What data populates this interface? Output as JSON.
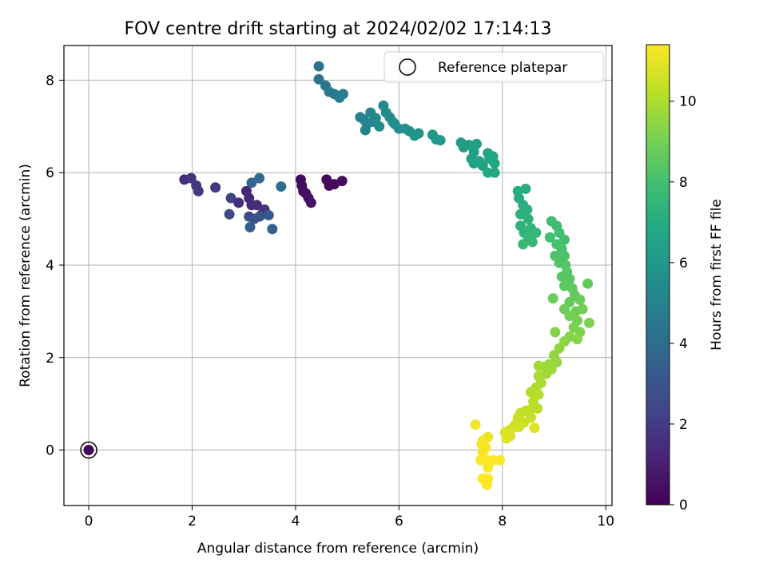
{
  "chart_data": {
    "type": "scatter",
    "title": "FOV centre drift starting at 2024/02/02 17:14:13",
    "xlabel": "Angular distance from reference (arcmin)",
    "ylabel": "Rotation from reference (arcmin)",
    "xlim": [
      -0.48,
      10.12
    ],
    "ylim": [
      -1.2,
      8.75
    ],
    "xticks": [
      0,
      2,
      4,
      6,
      8,
      10
    ],
    "yticks": [
      0,
      2,
      4,
      6,
      8
    ],
    "grid": true,
    "legend": {
      "position": "top-right",
      "entries": [
        "Reference platepar"
      ]
    },
    "colorbar": {
      "label": "Hours from first FF file",
      "min": 0,
      "max": 11.4,
      "ticks": [
        0,
        2,
        4,
        6,
        8,
        10
      ],
      "colormap": "viridis"
    },
    "reference_point": {
      "x": 0,
      "y": 0,
      "c": 0.1
    },
    "points": [
      {
        "x": 4.1,
        "y": 5.85,
        "c": 0.3
      },
      {
        "x": 4.12,
        "y": 5.72,
        "c": 0.35
      },
      {
        "x": 4.15,
        "y": 5.6,
        "c": 0.4
      },
      {
        "x": 4.2,
        "y": 5.55,
        "c": 0.45
      },
      {
        "x": 4.25,
        "y": 5.45,
        "c": 0.5
      },
      {
        "x": 4.3,
        "y": 5.35,
        "c": 0.55
      },
      {
        "x": 4.6,
        "y": 5.85,
        "c": 0.2
      },
      {
        "x": 4.65,
        "y": 5.72,
        "c": 0.25
      },
      {
        "x": 4.75,
        "y": 5.75,
        "c": 0.3
      },
      {
        "x": 4.9,
        "y": 5.82,
        "c": 0.35
      },
      {
        "x": 1.85,
        "y": 5.85,
        "c": 1.5
      },
      {
        "x": 1.98,
        "y": 5.88,
        "c": 1.6
      },
      {
        "x": 2.08,
        "y": 5.72,
        "c": 1.7
      },
      {
        "x": 2.12,
        "y": 5.6,
        "c": 1.8
      },
      {
        "x": 2.45,
        "y": 5.68,
        "c": 1.9
      },
      {
        "x": 2.75,
        "y": 5.45,
        "c": 2.2
      },
      {
        "x": 2.72,
        "y": 5.1,
        "c": 2.5
      },
      {
        "x": 2.9,
        "y": 5.35,
        "c": 1.5
      },
      {
        "x": 3.05,
        "y": 5.6,
        "c": 1.2
      },
      {
        "x": 3.1,
        "y": 5.45,
        "c": 1.3
      },
      {
        "x": 3.15,
        "y": 5.3,
        "c": 1.4
      },
      {
        "x": 3.25,
        "y": 5.3,
        "c": 1.5
      },
      {
        "x": 3.35,
        "y": 5.1,
        "c": 1.6
      },
      {
        "x": 3.4,
        "y": 5.2,
        "c": 1.7
      },
      {
        "x": 3.1,
        "y": 5.05,
        "c": 2.6
      },
      {
        "x": 3.2,
        "y": 5.0,
        "c": 2.8
      },
      {
        "x": 3.3,
        "y": 5.05,
        "c": 3.0
      },
      {
        "x": 3.48,
        "y": 5.08,
        "c": 3.2
      },
      {
        "x": 3.12,
        "y": 4.82,
        "c": 3.3
      },
      {
        "x": 3.55,
        "y": 4.78,
        "c": 3.5
      },
      {
        "x": 3.15,
        "y": 5.78,
        "c": 3.8
      },
      {
        "x": 3.3,
        "y": 5.88,
        "c": 3.9
      },
      {
        "x": 3.72,
        "y": 5.7,
        "c": 4.0
      },
      {
        "x": 4.45,
        "y": 8.3,
        "c": 4.2
      },
      {
        "x": 4.45,
        "y": 8.02,
        "c": 4.3
      },
      {
        "x": 4.58,
        "y": 7.88,
        "c": 4.4
      },
      {
        "x": 4.65,
        "y": 7.75,
        "c": 4.5
      },
      {
        "x": 4.75,
        "y": 7.7,
        "c": 4.6
      },
      {
        "x": 4.85,
        "y": 7.62,
        "c": 4.7
      },
      {
        "x": 4.92,
        "y": 7.7,
        "c": 4.8
      },
      {
        "x": 5.25,
        "y": 7.2,
        "c": 5.0
      },
      {
        "x": 5.32,
        "y": 7.15,
        "c": 5.05
      },
      {
        "x": 5.38,
        "y": 7.05,
        "c": 5.1
      },
      {
        "x": 5.35,
        "y": 6.92,
        "c": 5.15
      },
      {
        "x": 5.45,
        "y": 7.3,
        "c": 5.2
      },
      {
        "x": 5.5,
        "y": 7.1,
        "c": 5.25
      },
      {
        "x": 5.55,
        "y": 7.18,
        "c": 5.3
      },
      {
        "x": 5.62,
        "y": 7.0,
        "c": 5.35
      },
      {
        "x": 5.7,
        "y": 7.45,
        "c": 5.4
      },
      {
        "x": 5.75,
        "y": 7.3,
        "c": 5.45
      },
      {
        "x": 5.82,
        "y": 7.2,
        "c": 5.5
      },
      {
        "x": 5.88,
        "y": 7.1,
        "c": 5.55
      },
      {
        "x": 5.92,
        "y": 7.05,
        "c": 5.6
      },
      {
        "x": 6.0,
        "y": 6.95,
        "c": 5.65
      },
      {
        "x": 6.12,
        "y": 6.95,
        "c": 5.7
      },
      {
        "x": 6.2,
        "y": 6.9,
        "c": 5.75
      },
      {
        "x": 6.3,
        "y": 6.8,
        "c": 5.8
      },
      {
        "x": 6.38,
        "y": 6.85,
        "c": 5.85
      },
      {
        "x": 6.65,
        "y": 6.82,
        "c": 6.0
      },
      {
        "x": 6.72,
        "y": 6.72,
        "c": 6.05
      },
      {
        "x": 6.8,
        "y": 6.7,
        "c": 6.1
      },
      {
        "x": 7.2,
        "y": 6.65,
        "c": 6.2
      },
      {
        "x": 7.25,
        "y": 6.55,
        "c": 6.25
      },
      {
        "x": 7.35,
        "y": 6.6,
        "c": 6.3
      },
      {
        "x": 7.5,
        "y": 6.62,
        "c": 6.35
      },
      {
        "x": 7.45,
        "y": 6.45,
        "c": 6.4
      },
      {
        "x": 7.4,
        "y": 6.3,
        "c": 6.45
      },
      {
        "x": 7.45,
        "y": 6.2,
        "c": 6.5
      },
      {
        "x": 7.55,
        "y": 6.25,
        "c": 6.55
      },
      {
        "x": 7.62,
        "y": 6.15,
        "c": 6.6
      },
      {
        "x": 7.72,
        "y": 6.42,
        "c": 6.65
      },
      {
        "x": 7.75,
        "y": 6.3,
        "c": 6.7
      },
      {
        "x": 7.82,
        "y": 6.35,
        "c": 6.75
      },
      {
        "x": 7.85,
        "y": 6.2,
        "c": 6.8
      },
      {
        "x": 7.72,
        "y": 6.0,
        "c": 6.85
      },
      {
        "x": 7.85,
        "y": 6.0,
        "c": 6.9
      },
      {
        "x": 8.3,
        "y": 5.6,
        "c": 7.0
      },
      {
        "x": 8.32,
        "y": 5.45,
        "c": 7.05
      },
      {
        "x": 8.45,
        "y": 5.65,
        "c": 7.1
      },
      {
        "x": 8.4,
        "y": 5.3,
        "c": 7.15
      },
      {
        "x": 8.35,
        "y": 5.1,
        "c": 7.2
      },
      {
        "x": 8.48,
        "y": 5.2,
        "c": 7.25
      },
      {
        "x": 8.5,
        "y": 5.0,
        "c": 7.3
      },
      {
        "x": 8.35,
        "y": 4.85,
        "c": 7.35
      },
      {
        "x": 8.42,
        "y": 4.7,
        "c": 7.4
      },
      {
        "x": 8.55,
        "y": 4.8,
        "c": 7.45
      },
      {
        "x": 8.5,
        "y": 4.6,
        "c": 7.5
      },
      {
        "x": 8.65,
        "y": 4.7,
        "c": 7.55
      },
      {
        "x": 8.58,
        "y": 4.5,
        "c": 7.6
      },
      {
        "x": 8.4,
        "y": 4.45,
        "c": 7.65
      },
      {
        "x": 8.95,
        "y": 4.95,
        "c": 7.8
      },
      {
        "x": 9.05,
        "y": 4.85,
        "c": 7.85
      },
      {
        "x": 9.1,
        "y": 4.7,
        "c": 7.9
      },
      {
        "x": 8.92,
        "y": 4.6,
        "c": 7.95
      },
      {
        "x": 9.2,
        "y": 4.55,
        "c": 8.0
      },
      {
        "x": 9.05,
        "y": 4.45,
        "c": 8.05
      },
      {
        "x": 9.15,
        "y": 4.35,
        "c": 8.1
      },
      {
        "x": 9.2,
        "y": 4.2,
        "c": 8.15
      },
      {
        "x": 9.02,
        "y": 4.2,
        "c": 8.2
      },
      {
        "x": 9.1,
        "y": 4.05,
        "c": 8.25
      },
      {
        "x": 9.22,
        "y": 4.0,
        "c": 8.3
      },
      {
        "x": 9.25,
        "y": 3.85,
        "c": 8.35
      },
      {
        "x": 9.15,
        "y": 3.75,
        "c": 8.4
      },
      {
        "x": 9.3,
        "y": 3.7,
        "c": 8.45
      },
      {
        "x": 9.2,
        "y": 3.55,
        "c": 8.5
      },
      {
        "x": 9.35,
        "y": 3.5,
        "c": 8.55
      },
      {
        "x": 9.65,
        "y": 3.6,
        "c": 8.6
      },
      {
        "x": 9.4,
        "y": 3.35,
        "c": 8.65
      },
      {
        "x": 9.3,
        "y": 3.2,
        "c": 8.7
      },
      {
        "x": 9.5,
        "y": 3.25,
        "c": 8.75
      },
      {
        "x": 8.98,
        "y": 3.28,
        "c": 8.8
      },
      {
        "x": 9.2,
        "y": 3.05,
        "c": 8.85
      },
      {
        "x": 9.42,
        "y": 3.0,
        "c": 8.9
      },
      {
        "x": 9.55,
        "y": 3.05,
        "c": 8.95
      },
      {
        "x": 9.3,
        "y": 2.9,
        "c": 9.0
      },
      {
        "x": 9.45,
        "y": 2.8,
        "c": 9.05
      },
      {
        "x": 9.38,
        "y": 2.65,
        "c": 9.1
      },
      {
        "x": 9.68,
        "y": 2.75,
        "c": 9.15
      },
      {
        "x": 9.5,
        "y": 2.55,
        "c": 9.2
      },
      {
        "x": 9.02,
        "y": 2.55,
        "c": 9.25
      },
      {
        "x": 9.3,
        "y": 2.45,
        "c": 9.3
      },
      {
        "x": 9.45,
        "y": 2.4,
        "c": 9.35
      },
      {
        "x": 9.2,
        "y": 2.35,
        "c": 9.4
      },
      {
        "x": 9.1,
        "y": 2.2,
        "c": 9.5
      },
      {
        "x": 9.0,
        "y": 2.05,
        "c": 9.55
      },
      {
        "x": 9.05,
        "y": 1.9,
        "c": 9.6
      },
      {
        "x": 8.9,
        "y": 1.85,
        "c": 9.65
      },
      {
        "x": 8.95,
        "y": 1.75,
        "c": 9.7
      },
      {
        "x": 8.8,
        "y": 1.8,
        "c": 9.75
      },
      {
        "x": 8.85,
        "y": 1.65,
        "c": 9.8
      },
      {
        "x": 8.7,
        "y": 1.82,
        "c": 9.85
      },
      {
        "x": 8.7,
        "y": 1.6,
        "c": 9.9
      },
      {
        "x": 8.75,
        "y": 1.45,
        "c": 9.95
      },
      {
        "x": 8.65,
        "y": 1.35,
        "c": 10.0
      },
      {
        "x": 8.55,
        "y": 1.25,
        "c": 10.05
      },
      {
        "x": 8.7,
        "y": 1.2,
        "c": 10.1
      },
      {
        "x": 8.6,
        "y": 1.05,
        "c": 10.15
      },
      {
        "x": 8.68,
        "y": 0.9,
        "c": 10.2
      },
      {
        "x": 8.55,
        "y": 0.88,
        "c": 10.25
      },
      {
        "x": 8.45,
        "y": 0.85,
        "c": 10.3
      },
      {
        "x": 8.35,
        "y": 0.8,
        "c": 10.35
      },
      {
        "x": 8.55,
        "y": 0.7,
        "c": 10.4
      },
      {
        "x": 8.3,
        "y": 0.7,
        "c": 10.45
      },
      {
        "x": 8.42,
        "y": 0.6,
        "c": 10.5
      },
      {
        "x": 8.25,
        "y": 0.55,
        "c": 10.55
      },
      {
        "x": 8.2,
        "y": 0.48,
        "c": 10.6
      },
      {
        "x": 8.32,
        "y": 0.5,
        "c": 10.65
      },
      {
        "x": 8.12,
        "y": 0.42,
        "c": 10.7
      },
      {
        "x": 8.05,
        "y": 0.38,
        "c": 10.75
      },
      {
        "x": 8.15,
        "y": 0.3,
        "c": 10.8
      },
      {
        "x": 8.08,
        "y": 0.25,
        "c": 10.85
      },
      {
        "x": 8.62,
        "y": 0.48,
        "c": 10.9
      },
      {
        "x": 7.72,
        "y": 0.28,
        "c": 11.0
      },
      {
        "x": 7.48,
        "y": 0.55,
        "c": 11.2
      },
      {
        "x": 7.62,
        "y": 0.2,
        "c": 11.3
      },
      {
        "x": 7.6,
        "y": 0.12,
        "c": 11.3
      },
      {
        "x": 7.68,
        "y": 0.05,
        "c": 11.3
      },
      {
        "x": 7.62,
        "y": -0.05,
        "c": 11.3
      },
      {
        "x": 7.58,
        "y": -0.22,
        "c": 11.35
      },
      {
        "x": 7.7,
        "y": -0.22,
        "c": 11.35
      },
      {
        "x": 7.82,
        "y": -0.22,
        "c": 11.35
      },
      {
        "x": 7.95,
        "y": -0.22,
        "c": 11.35
      },
      {
        "x": 7.72,
        "y": -0.38,
        "c": 11.35
      },
      {
        "x": 7.62,
        "y": -0.62,
        "c": 11.4
      },
      {
        "x": 7.72,
        "y": -0.62,
        "c": 11.4
      },
      {
        "x": 7.7,
        "y": -0.75,
        "c": 11.4
      }
    ]
  }
}
